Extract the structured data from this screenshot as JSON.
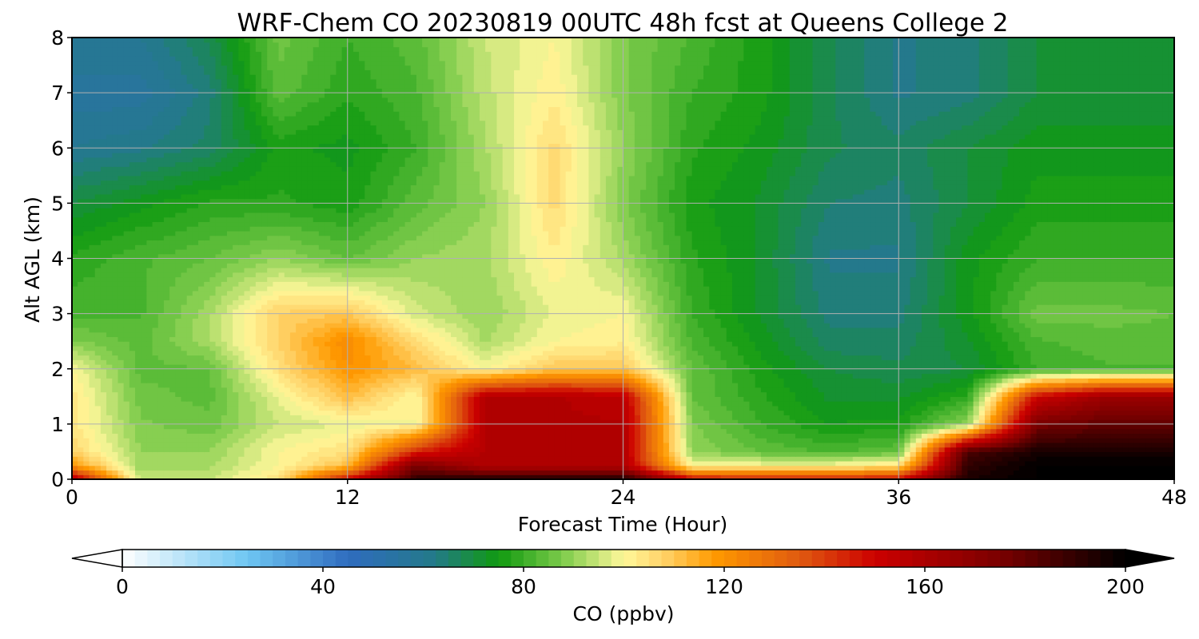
{
  "chart_data": {
    "type": "heatmap",
    "title": "WRF-Chem CO  20230819 00UTC 48h fcst at Queens College 2",
    "xlabel": "Forecast Time (Hour)",
    "ylabel": "Alt AGL (km)",
    "xlim": [
      0,
      48
    ],
    "ylim": [
      0,
      8
    ],
    "xticks": [
      0,
      12,
      24,
      36,
      48
    ],
    "yticks": [
      0,
      1,
      2,
      3,
      4,
      5,
      6,
      7,
      8
    ],
    "grid": true,
    "x": [
      0,
      3,
      6,
      9,
      12,
      15,
      18,
      21,
      24,
      27,
      30,
      33,
      36,
      39,
      42,
      45,
      48
    ],
    "y": [
      0,
      0.25,
      0.5,
      1,
      1.5,
      2,
      2.5,
      3,
      4,
      5,
      6,
      7,
      8
    ],
    "z": [
      [
        160,
        95,
        95,
        105,
        150,
        190,
        195,
        195,
        195,
        150,
        145,
        145,
        150,
        195,
        200,
        200,
        200
      ],
      [
        120,
        90,
        92,
        100,
        112,
        175,
        158,
        158,
        158,
        100,
        100,
        100,
        105,
        190,
        200,
        200,
        200
      ],
      [
        108,
        90,
        90,
        100,
        105,
        145,
        158,
        158,
        158,
        90,
        85,
        82,
        85,
        185,
        195,
        195,
        195
      ],
      [
        104,
        88,
        86,
        95,
        98,
        100,
        158,
        158,
        158,
        88,
        80,
        75,
        76,
        90,
        175,
        180,
        180
      ],
      [
        104,
        86,
        84,
        98,
        112,
        100,
        158,
        158,
        155,
        85,
        78,
        72,
        72,
        78,
        150,
        165,
        165
      ],
      [
        100,
        84,
        85,
        105,
        120,
        112,
        100,
        110,
        110,
        85,
        76,
        70,
        68,
        70,
        80,
        82,
        82
      ],
      [
        88,
        84,
        92,
        108,
        122,
        106,
        92,
        100,
        102,
        82,
        74,
        66,
        66,
        72,
        82,
        84,
        84
      ],
      [
        82,
        82,
        92,
        108,
        110,
        96,
        90,
        98,
        100,
        80,
        72,
        64,
        64,
        74,
        86,
        86,
        85
      ],
      [
        78,
        82,
        85,
        90,
        85,
        90,
        92,
        102,
        92,
        78,
        72,
        62,
        62,
        74,
        80,
        80,
        80
      ],
      [
        70,
        74,
        78,
        78,
        76,
        84,
        90,
        106,
        88,
        76,
        72,
        65,
        64,
        70,
        76,
        76,
        76
      ],
      [
        60,
        62,
        66,
        76,
        74,
        80,
        92,
        106,
        90,
        78,
        74,
        68,
        66,
        70,
        74,
        74,
        74
      ],
      [
        56,
        56,
        64,
        84,
        78,
        82,
        94,
        102,
        88,
        80,
        76,
        68,
        62,
        64,
        70,
        70,
        70
      ],
      [
        60,
        60,
        68,
        86,
        80,
        84,
        95,
        100,
        88,
        82,
        76,
        68,
        62,
        64,
        70,
        70,
        70
      ]
    ]
  },
  "colorbar": {
    "label": "CO  (ppbv)",
    "min": 0,
    "max": 200,
    "step": 2.5,
    "ticks": [
      0,
      40,
      80,
      120,
      160,
      200
    ],
    "extend": "both",
    "stops": [
      {
        "v": 0,
        "c": "#ffffff"
      },
      {
        "v": 25,
        "c": "#6ec6f2"
      },
      {
        "v": 45,
        "c": "#2f6cbf"
      },
      {
        "v": 62,
        "c": "#247a8a"
      },
      {
        "v": 75,
        "c": "#109a10"
      },
      {
        "v": 88,
        "c": "#7fcc4c"
      },
      {
        "v": 100,
        "c": "#fff89a"
      },
      {
        "v": 108,
        "c": "#ffd268"
      },
      {
        "v": 118,
        "c": "#ff9a00"
      },
      {
        "v": 135,
        "c": "#e05a10"
      },
      {
        "v": 150,
        "c": "#cc0000"
      },
      {
        "v": 175,
        "c": "#7a0000"
      },
      {
        "v": 200,
        "c": "#000000"
      }
    ]
  }
}
